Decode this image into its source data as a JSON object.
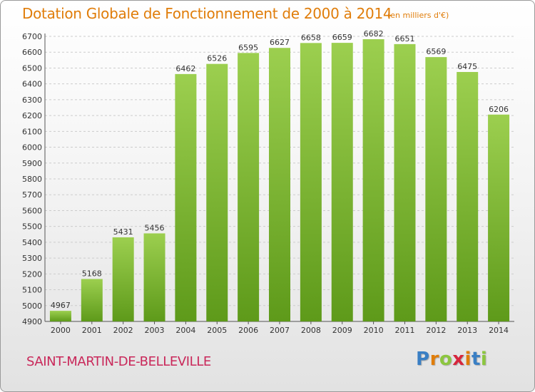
{
  "title": "Dotation Globale de Fonctionnement de 2000 à 2014",
  "subtitle": "(en milliers d'€)",
  "commune": "SAINT-MARTIN-DE-BELLEVILLE",
  "logo": {
    "letters": [
      "P",
      "r",
      "o",
      "x",
      "i",
      "t",
      "i"
    ],
    "colors": [
      "#3a7fc4",
      "#e07d0a",
      "#8cc63f",
      "#d7263d",
      "#e07d0a",
      "#3a7fc4",
      "#8cc63f"
    ]
  },
  "colors": {
    "title": "#e07d0a",
    "commune": "#c9285a",
    "bar_top": "#9ccf4f",
    "bar_bottom": "#5e9a1a",
    "grid": "#cccccc",
    "axis": "#555555"
  },
  "chart_data": {
    "type": "bar",
    "title": "Dotation Globale de Fonctionnement de 2000 à 2014",
    "subtitle": "(en milliers d'€)",
    "categories": [
      "2000",
      "2001",
      "2002",
      "2003",
      "2004",
      "2005",
      "2006",
      "2007",
      "2008",
      "2009",
      "2010",
      "2011",
      "2012",
      "2013",
      "2014"
    ],
    "values": [
      4967,
      5168,
      5431,
      5456,
      6462,
      6526,
      6595,
      6627,
      6658,
      6659,
      6682,
      6651,
      6569,
      6475,
      6206
    ],
    "value_labels": [
      "4967",
      "5168",
      "5431",
      "5456",
      "6462",
      "6526",
      "6595",
      "6627",
      "6658",
      "6659",
      "6682",
      "6651",
      "6569",
      "6475",
      "6206"
    ],
    "ylim": [
      4900,
      6700
    ],
    "yticks": [
      4900,
      5000,
      5100,
      5200,
      5300,
      5400,
      5500,
      5600,
      5700,
      5800,
      5900,
      6000,
      6100,
      6200,
      6300,
      6400,
      6500,
      6600,
      6700
    ],
    "grid": true,
    "legend": "none"
  }
}
